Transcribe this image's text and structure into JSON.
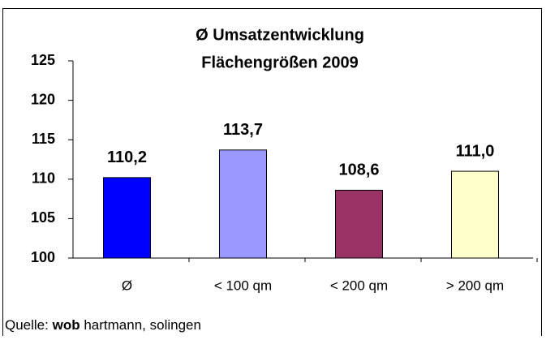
{
  "chart_data": {
    "type": "bar",
    "title": [
      "Ø Umsatzentwicklung",
      "Flächengrößen 2009"
    ],
    "categories": [
      "Ø",
      "< 100 qm",
      "< 200 qm",
      "> 200 qm"
    ],
    "values": [
      110.2,
      113.7,
      108.6,
      111.0
    ],
    "value_labels": [
      "110,2",
      "113,7",
      "108,6",
      "111,0"
    ],
    "colors": [
      "#0000ff",
      "#9999ff",
      "#993366",
      "#ffffcc"
    ],
    "ylim": [
      100,
      125
    ],
    "yticks": [
      100,
      105,
      110,
      115,
      120,
      125
    ],
    "grid": false,
    "source": [
      "Quelle:",
      "wob",
      "hartmann, solingen"
    ]
  }
}
